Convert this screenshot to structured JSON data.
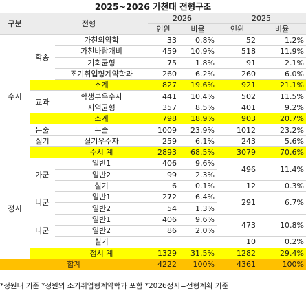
{
  "title": "2025~2026 가천대 전형구조",
  "headers": {
    "gubun": "구분",
    "jeonhyeong": "전형",
    "y2026": "2026",
    "y2025": "2025",
    "inwon": "인원",
    "biyul": "비율"
  },
  "groups": {
    "susi": "수시",
    "jeongsi": "정시",
    "hakjong": "학종",
    "gyogwa": "교과",
    "nonsul": "논술",
    "silgi": "실기",
    "ga": "가군",
    "na": "나군",
    "da": "다군"
  },
  "rows": [
    {
      "name": "가천의약학",
      "n26": "33",
      "p26": "0.8%",
      "n25": "52",
      "p25": "1.2%"
    },
    {
      "name": "가천바람개비",
      "n26": "459",
      "p26": "10.9%",
      "n25": "518",
      "p25": "11.9%"
    },
    {
      "name": "기회균형",
      "n26": "75",
      "p26": "1.8%",
      "n25": "91",
      "p25": "2.1%"
    },
    {
      "name": "조기취업형계약학과",
      "n26": "260",
      "p26": "6.2%",
      "n25": "260",
      "p25": "6.0%"
    },
    {
      "name": "소계",
      "n26": "827",
      "p26": "19.6%",
      "n25": "921",
      "p25": "21.1%"
    },
    {
      "name": "학생부우수자",
      "n26": "441",
      "p26": "10.4%",
      "n25": "502",
      "p25": "11.5%"
    },
    {
      "name": "지역균형",
      "n26": "357",
      "p26": "8.5%",
      "n25": "401",
      "p25": "9.2%"
    },
    {
      "name": "소계",
      "n26": "798",
      "p26": "18.9%",
      "n25": "903",
      "p25": "20.7%"
    },
    {
      "name": "논술",
      "n26": "1009",
      "p26": "23.9%",
      "n25": "1012",
      "p25": "23.2%"
    },
    {
      "name": "실기우수자",
      "n26": "259",
      "p26": "6.1%",
      "n25": "243",
      "p25": "5.6%"
    },
    {
      "name": "수시 계",
      "n26": "2893",
      "p26": "68.5%",
      "n25": "3079",
      "p25": "70.6%"
    },
    {
      "name": "일반1",
      "n26": "406",
      "p26": "9.6%"
    },
    {
      "name": "일반2",
      "n26": "99",
      "p26": "2.3%"
    },
    {
      "name": "실기",
      "n26": "6",
      "p26": "0.1%",
      "n25": "12",
      "p25": "0.3%"
    },
    {
      "name": "일반1",
      "n26": "272",
      "p26": "6.4%"
    },
    {
      "name": "일반2",
      "n26": "54",
      "p26": "1.3%"
    },
    {
      "name": "일반1",
      "n26": "406",
      "p26": "9.6%"
    },
    {
      "name": "일반2",
      "n26": "86",
      "p26": "2.0%"
    },
    {
      "name": "실기",
      "n26": "",
      "p26": "",
      "n25": "10",
      "p25": "0.2%"
    },
    {
      "name": "정시 계",
      "n26": "1329",
      "p26": "31.5%",
      "n25": "1282",
      "p25": "29.4%"
    },
    {
      "name": "합계",
      "n26": "4222",
      "p26": "100%",
      "n25": "4361",
      "p25": "100%"
    }
  ],
  "merged_2025": {
    "ga": {
      "n25": "496",
      "p25": "11.4%"
    },
    "na": {
      "n25": "291",
      "p25": "6.7%"
    },
    "da": {
      "n25": "473",
      "p25": "10.8%"
    }
  },
  "footer": "*정원내 기준 *정원외 조기취업형계약학과 포함 *2026정시=전형계획 기준",
  "colors": {
    "subtotal": "#ffff00",
    "total": "#ffc000",
    "header": "#ececec",
    "border": "#d4d4d4"
  }
}
